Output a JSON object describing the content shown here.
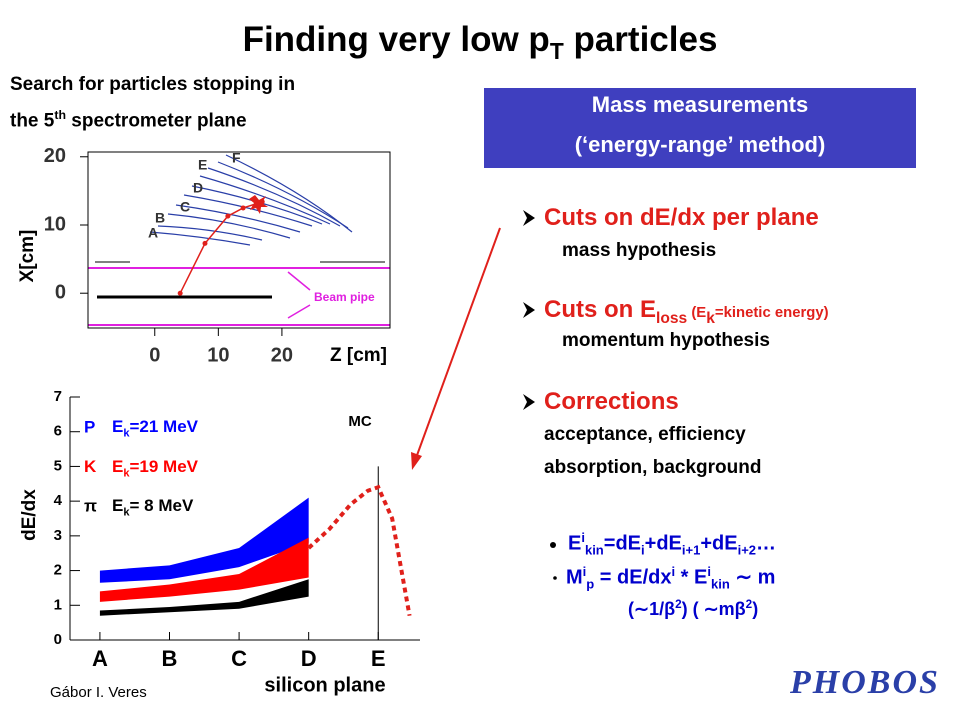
{
  "title": [
    {
      "text": "Finding very low p"
    },
    {
      "text": "T",
      "pos": "sub"
    },
    {
      "text": " particles"
    }
  ],
  "left_text": [
    [
      {
        "text": "Search for particles stopping in"
      }
    ],
    [
      {
        "text": "the 5"
      },
      {
        "text": "th",
        "pos": "sup"
      },
      {
        "text": " spectrometer plane"
      }
    ]
  ],
  "box": [
    "Mass measurements",
    "(‘energy-range’ method)"
  ],
  "bullets": [
    {
      "head": [
        {
          "text": "Cuts on dE/dx per plane"
        }
      ],
      "lines": [
        "mass hypothesis"
      ]
    },
    {
      "head": [
        {
          "text": "Cuts on E"
        },
        {
          "text": "loss",
          "pos": "sub"
        },
        {
          "text": " (E",
          "pos": "small"
        },
        {
          "text": "k",
          "pos": "sub"
        },
        {
          "text": "=kinetic energy)",
          "pos": "small"
        }
      ],
      "lines": [
        "momentum hypothesis"
      ]
    },
    {
      "head": [
        {
          "text": "Corrections"
        }
      ],
      "lines": [
        "acceptance, efficiency",
        "absorption, background"
      ]
    }
  ],
  "formulas": [
    [
      {
        "text": "E"
      },
      {
        "text": "i",
        "pos": "sup"
      },
      {
        "text": "kin",
        "pos": "sub"
      },
      {
        "text": "=dE"
      },
      {
        "text": "i",
        "pos": "sub"
      },
      {
        "text": "+dE"
      },
      {
        "text": "i+1",
        "pos": "sub"
      },
      {
        "text": "+dE"
      },
      {
        "text": "i+2",
        "pos": "sub"
      },
      {
        "text": "…"
      }
    ],
    [
      {
        "text": "M"
      },
      {
        "text": "i",
        "pos": "sup"
      },
      {
        "text": "p",
        "pos": "sub"
      },
      {
        "text": " = dE/dx"
      },
      {
        "text": "i",
        "pos": "sup"
      },
      {
        "text": " * E"
      },
      {
        "text": "i",
        "pos": "sup"
      },
      {
        "text": "kin",
        "pos": "sub"
      },
      {
        "text": "  ∼ m"
      }
    ],
    [
      {
        "text": "(∼1/β"
      },
      {
        "text": "2",
        "pos": "sup"
      },
      {
        "text": ") ( ∼mβ"
      },
      {
        "text": "2",
        "pos": "sup"
      },
      {
        "text": ")"
      }
    ]
  ],
  "author": "Gábor I. Veres",
  "logo": "PHOBOS",
  "chart_data": [
    {
      "type": "line",
      "xlabel": "Z [cm]",
      "ylabel": "X[cm]",
      "xlim": [
        -10.5,
        37
      ],
      "ylim": [
        -5.1,
        20.7
      ],
      "xticks": [
        0,
        10,
        20
      ],
      "yticks": [
        0,
        10,
        20
      ],
      "series": [
        {
          "color": "#e0201b",
          "x": [
            4,
            7.9,
            11.5,
            13.9,
            16.9
          ],
          "values": [
            0,
            7.3,
            11.3,
            12.5,
            13.4
          ]
        }
      ],
      "annotations": [
        "A",
        "B",
        "C",
        "D",
        "E",
        "F",
        "Beam pipe"
      ]
    },
    {
      "type": "band",
      "xlabel": "silicon plane",
      "ylabel": "dE/dx",
      "xlim": [
        0.57,
        5.6
      ],
      "ylim": [
        0,
        7
      ],
      "xticks": [
        {
          "value": 1,
          "label": "A"
        },
        {
          "value": 2,
          "label": "B"
        },
        {
          "value": 3,
          "label": "C"
        },
        {
          "value": 4,
          "label": "D"
        },
        {
          "value": 5,
          "label": "E"
        }
      ],
      "yticks": [
        0,
        1,
        2,
        3,
        4,
        5,
        6,
        7
      ],
      "series": [
        {
          "name": "P",
          "energy": [
            {
              "text": "E"
            },
            {
              "text": "k",
              "pos": "sub"
            },
            {
              "text": "=21 MeV"
            }
          ],
          "color": "#0000ff",
          "x": [
            1,
            2,
            3,
            4
          ],
          "low": [
            1.65,
            1.75,
            2.1,
            2.8
          ],
          "high": [
            2.0,
            2.15,
            2.65,
            4.1
          ]
        },
        {
          "name": "K",
          "energy": [
            {
              "text": "E"
            },
            {
              "text": "k",
              "pos": "sub"
            },
            {
              "text": "=19 MeV"
            }
          ],
          "color": "#ff0000",
          "x": [
            1,
            2,
            3,
            4
          ],
          "low": [
            1.1,
            1.25,
            1.45,
            1.8
          ],
          "high": [
            1.4,
            1.6,
            1.9,
            2.95
          ]
        },
        {
          "name": "π",
          "energy": [
            {
              "text": "E"
            },
            {
              "text": "k",
              "pos": "sub"
            },
            {
              "text": "= 8 MeV"
            }
          ],
          "color": "#000000",
          "x": [
            1,
            2,
            3,
            4
          ],
          "low": [
            0.7,
            0.8,
            0.9,
            1.25
          ],
          "high": [
            0.85,
            0.95,
            1.1,
            1.75
          ]
        },
        {
          "name": "MC",
          "color": "#e0201b",
          "dashed": true,
          "x": [
            4.0,
            4.3,
            4.6,
            4.85,
            5.0,
            5.2,
            5.45
          ],
          "values": [
            2.65,
            3.2,
            3.9,
            4.3,
            4.4,
            3.5,
            0.7
          ]
        }
      ]
    }
  ]
}
